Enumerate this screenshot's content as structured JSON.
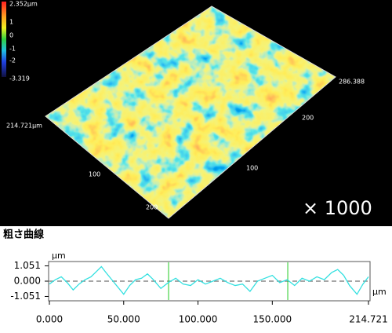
{
  "surface_view": {
    "colorbar_labels": [
      "2.352µm",
      "1",
      "0",
      "-1",
      "-2",
      "-3.319"
    ],
    "axis_labels": [
      "286.388",
      "214.721µm",
      "200",
      "100",
      "100",
      "200"
    ],
    "magnification": "× 1000"
  },
  "section_title": "粗さ曲線",
  "chart_data": {
    "type": "line",
    "y_unit": "µm",
    "x_unit": "µm",
    "color": "#33e0e0",
    "x": [
      0,
      4,
      8,
      12,
      16,
      20,
      24,
      28,
      32,
      35,
      38,
      42,
      46,
      50,
      54,
      58,
      62,
      66,
      70,
      75,
      80,
      85,
      90,
      95,
      100,
      105,
      110,
      115,
      120,
      125,
      130,
      135,
      140,
      145,
      150,
      155,
      160,
      165,
      170,
      175,
      180,
      185,
      190,
      194,
      198,
      202,
      207,
      211,
      214.721
    ],
    "values": [
      -0.2,
      0.1,
      0.3,
      -0.1,
      -0.6,
      -0.2,
      0.1,
      0.3,
      0.7,
      1.0,
      0.6,
      0.1,
      -0.4,
      -0.9,
      -0.3,
      0.1,
      0.2,
      0.5,
      0.1,
      -0.5,
      -0.1,
      0.2,
      -0.2,
      -0.3,
      0.1,
      -0.2,
      0.0,
      0.2,
      -0.1,
      -0.3,
      -0.2,
      -0.7,
      0.0,
      0.2,
      0.4,
      -0.1,
      0.1,
      -0.3,
      0.2,
      0.0,
      0.3,
      0.1,
      0.6,
      0.8,
      0.4,
      -0.3,
      -0.9,
      -0.2,
      0.3
    ],
    "xlim": [
      0,
      214.721
    ],
    "ylim": [
      -1.35,
      1.35
    ],
    "xticks": [
      {
        "value": 0,
        "label": "0.000"
      },
      {
        "value": 50,
        "label": "50.000"
      },
      {
        "value": 100,
        "label": "100.000"
      },
      {
        "value": 150,
        "label": "150.000"
      },
      {
        "value": 214.721,
        "label": "214.721"
      }
    ],
    "yticks": [
      1.051,
      {
        "value": 0,
        "label": "0.000"
      },
      -1.051
    ],
    "reference_line": 0,
    "cursors": [
      80.2,
      160.4
    ],
    "cursor_color": "#22cc22"
  }
}
